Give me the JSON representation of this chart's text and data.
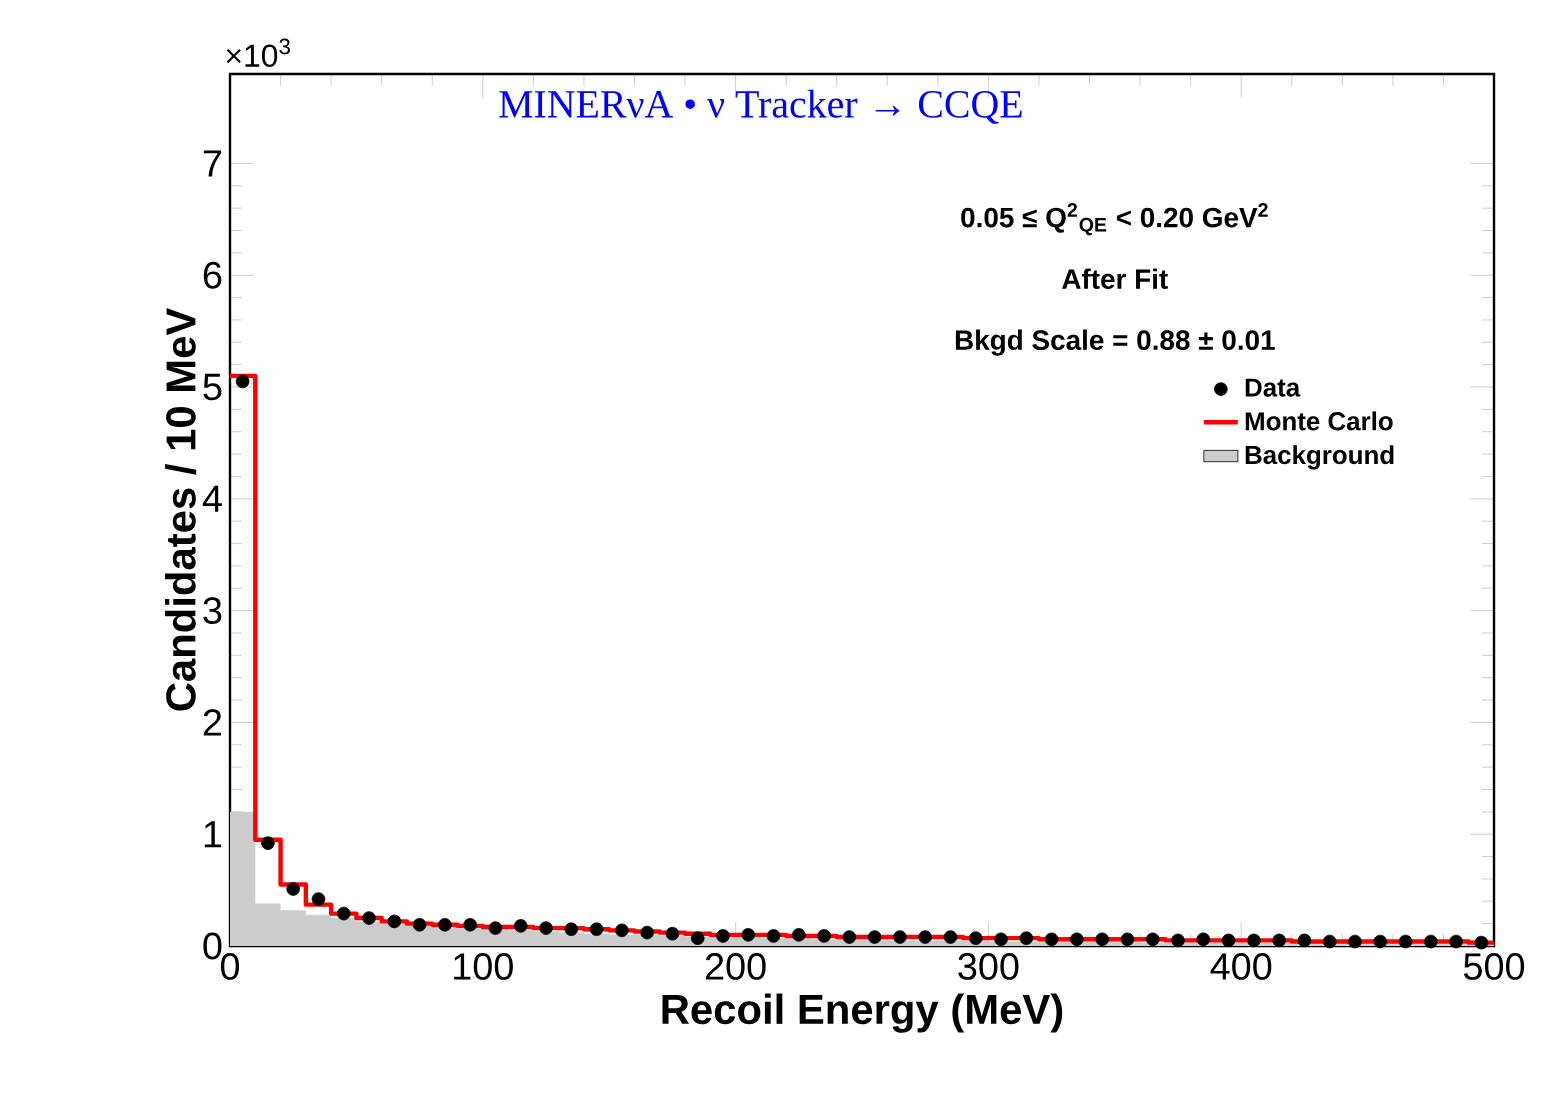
{
  "chart_data": {
    "type": "histogram",
    "title": "MINERνA • ν Tracker → CCQE",
    "xlabel": "Recoil Energy (MeV)",
    "ylabel": "Candidates / 10 MeV",
    "annotations": [
      "0.05 ≤ Q$^{2}$$_{QE}$ < 0.20 GeV$^{2}$",
      "After Fit",
      "Bkgd Scale = 0.88 ± 0.01",
      "×10$^{3}$"
    ],
    "bins": [
      0,
      10,
      20,
      30,
      40,
      50,
      60,
      70,
      80,
      90,
      100,
      110,
      120,
      130,
      140,
      150,
      160,
      170,
      180,
      190,
      200,
      210,
      220,
      230,
      240,
      250,
      260,
      270,
      280,
      290,
      300,
      310,
      320,
      330,
      340,
      350,
      360,
      370,
      380,
      390,
      400,
      410,
      420,
      430,
      440,
      450,
      460,
      470,
      480,
      490,
      500
    ],
    "series": [
      {
        "name": "Data",
        "type": "scatter",
        "color": "#000000",
        "x": [
          5,
          15,
          25,
          35,
          45,
          55,
          65,
          75,
          85,
          95,
          105,
          115,
          125,
          135,
          145,
          155,
          165,
          175,
          185,
          195,
          205,
          215,
          225,
          235,
          245,
          255,
          265,
          275,
          285,
          295,
          305,
          315,
          325,
          335,
          345,
          355,
          365,
          375,
          385,
          395,
          405,
          415,
          425,
          435,
          445,
          455,
          465,
          475,
          485,
          495
        ],
        "values": [
          5.05,
          0.92,
          0.51,
          0.42,
          0.29,
          0.25,
          0.22,
          0.19,
          0.19,
          0.19,
          0.16,
          0.18,
          0.16,
          0.15,
          0.15,
          0.14,
          0.12,
          0.11,
          0.07,
          0.09,
          0.1,
          0.09,
          0.1,
          0.09,
          0.08,
          0.08,
          0.08,
          0.08,
          0.08,
          0.07,
          0.06,
          0.07,
          0.06,
          0.06,
          0.06,
          0.06,
          0.06,
          0.05,
          0.06,
          0.05,
          0.05,
          0.05,
          0.05,
          0.04,
          0.04,
          0.04,
          0.04,
          0.04,
          0.04,
          0.03
        ]
      },
      {
        "name": "Monte Carlo",
        "type": "step",
        "color": "#ff0000",
        "x": [
          0,
          10,
          20,
          30,
          40,
          50,
          60,
          70,
          80,
          90,
          100,
          110,
          120,
          130,
          140,
          150,
          160,
          170,
          180,
          190,
          200,
          210,
          220,
          230,
          240,
          250,
          260,
          270,
          280,
          290,
          300,
          310,
          320,
          330,
          340,
          350,
          360,
          370,
          380,
          390,
          400,
          410,
          420,
          430,
          440,
          450,
          460,
          470,
          480,
          490,
          500
        ],
        "values": [
          5.1,
          0.95,
          0.55,
          0.37,
          0.29,
          0.25,
          0.22,
          0.2,
          0.19,
          0.18,
          0.17,
          0.17,
          0.16,
          0.16,
          0.15,
          0.14,
          0.13,
          0.12,
          0.11,
          0.1,
          0.1,
          0.1,
          0.09,
          0.09,
          0.08,
          0.08,
          0.08,
          0.08,
          0.08,
          0.07,
          0.07,
          0.07,
          0.06,
          0.06,
          0.06,
          0.06,
          0.06,
          0.05,
          0.05,
          0.05,
          0.05,
          0.05,
          0.04,
          0.04,
          0.04,
          0.04,
          0.04,
          0.04,
          0.04,
          0.03,
          0.03
        ]
      },
      {
        "name": "Background",
        "color": "#cccccc",
        "values": [
          1.2,
          0.38,
          0.32,
          0.28,
          0.25,
          0.22,
          0.2,
          0.18,
          0.17,
          0.16,
          0.15,
          0.14,
          0.13,
          0.12,
          0.11,
          0.1,
          0.1,
          0.09,
          0.08,
          0.08,
          0.08,
          0.07,
          0.07,
          0.06,
          0.06,
          0.06,
          0.05,
          0.05,
          0.05,
          0.05,
          0.04,
          0.04,
          0.04,
          0.04,
          0.04,
          0.04,
          0.03,
          0.03,
          0.03,
          0.03,
          0.03,
          0.03,
          0.03,
          0.03,
          0.03,
          0.02,
          0.02,
          0.02,
          0.02,
          0.02
        ]
      }
    ],
    "xlim": [
      0,
      500
    ],
    "xticks": [
      0,
      100,
      200,
      300,
      400,
      500
    ],
    "ylim": [
      0,
      7.8
    ],
    "yticks": [
      0,
      1,
      2,
      3,
      4,
      5,
      6,
      7
    ],
    "legend": "right"
  }
}
